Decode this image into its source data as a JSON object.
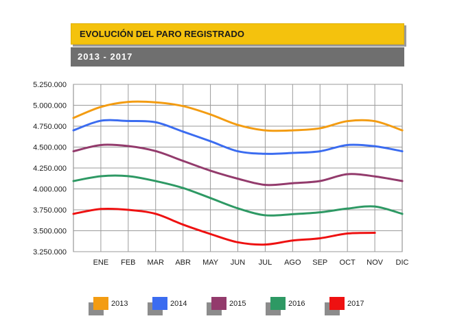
{
  "header": {
    "title": "EVOLUCIÓN DEL PARO REGISTRADO",
    "subtitle": "2013 - 2017"
  },
  "chart_data": {
    "type": "line",
    "title": "EVOLUCIÓN DEL PARO REGISTRADO",
    "subtitle": "2013 - 2017",
    "xlabel": "",
    "ylabel": "",
    "categories": [
      "ENE",
      "FEB",
      "MAR",
      "ABR",
      "MAY",
      "JUN",
      "JUL",
      "AGO",
      "SEP",
      "OCT",
      "NOV",
      "DIC"
    ],
    "y_ticks": [
      3250000,
      3500000,
      3750000,
      4000000,
      4250000,
      4500000,
      4750000,
      5000000,
      5250000
    ],
    "y_tick_labels": [
      "3.250.000",
      "3.500.000",
      "3.750.000",
      "4.000.000",
      "4.250.000",
      "4.500.000",
      "4.750.000",
      "5.000.000",
      "5.250.000"
    ],
    "ylim": [
      3250000,
      5250000
    ],
    "grid": true,
    "legend_position": "bottom",
    "series": [
      {
        "name": "2013",
        "color": "#f39c12",
        "start": 4848000,
        "values": [
          4980000,
          5040000,
          5035000,
          4990000,
          4890000,
          4765000,
          4700000,
          4700000,
          4725000,
          4810000,
          4810000,
          4700000
        ]
      },
      {
        "name": "2014",
        "color": "#3b6cf0",
        "start": 4700000,
        "values": [
          4815000,
          4812000,
          4797000,
          4685000,
          4570000,
          4450000,
          4420000,
          4430000,
          4450000,
          4525000,
          4510000,
          4450000
        ]
      },
      {
        "name": "2015",
        "color": "#933b6c",
        "start": 4450000,
        "values": [
          4525000,
          4512000,
          4452000,
          4335000,
          4218000,
          4122000,
          4048000,
          4068000,
          4094000,
          4176000,
          4150000,
          4094000
        ]
      },
      {
        "name": "2016",
        "color": "#2e9964",
        "start": 4094000,
        "values": [
          4152000,
          4153000,
          4094000,
          4011000,
          3891000,
          3768000,
          3685000,
          3698000,
          3720000,
          3765000,
          3790000,
          3702000
        ]
      },
      {
        "name": "2017",
        "color": "#ee1111",
        "start": 3702000,
        "values": [
          3760000,
          3750000,
          3702000,
          3573000,
          3461000,
          3362000,
          3335000,
          3383000,
          3410000,
          3467000,
          3475000,
          null
        ]
      }
    ]
  }
}
